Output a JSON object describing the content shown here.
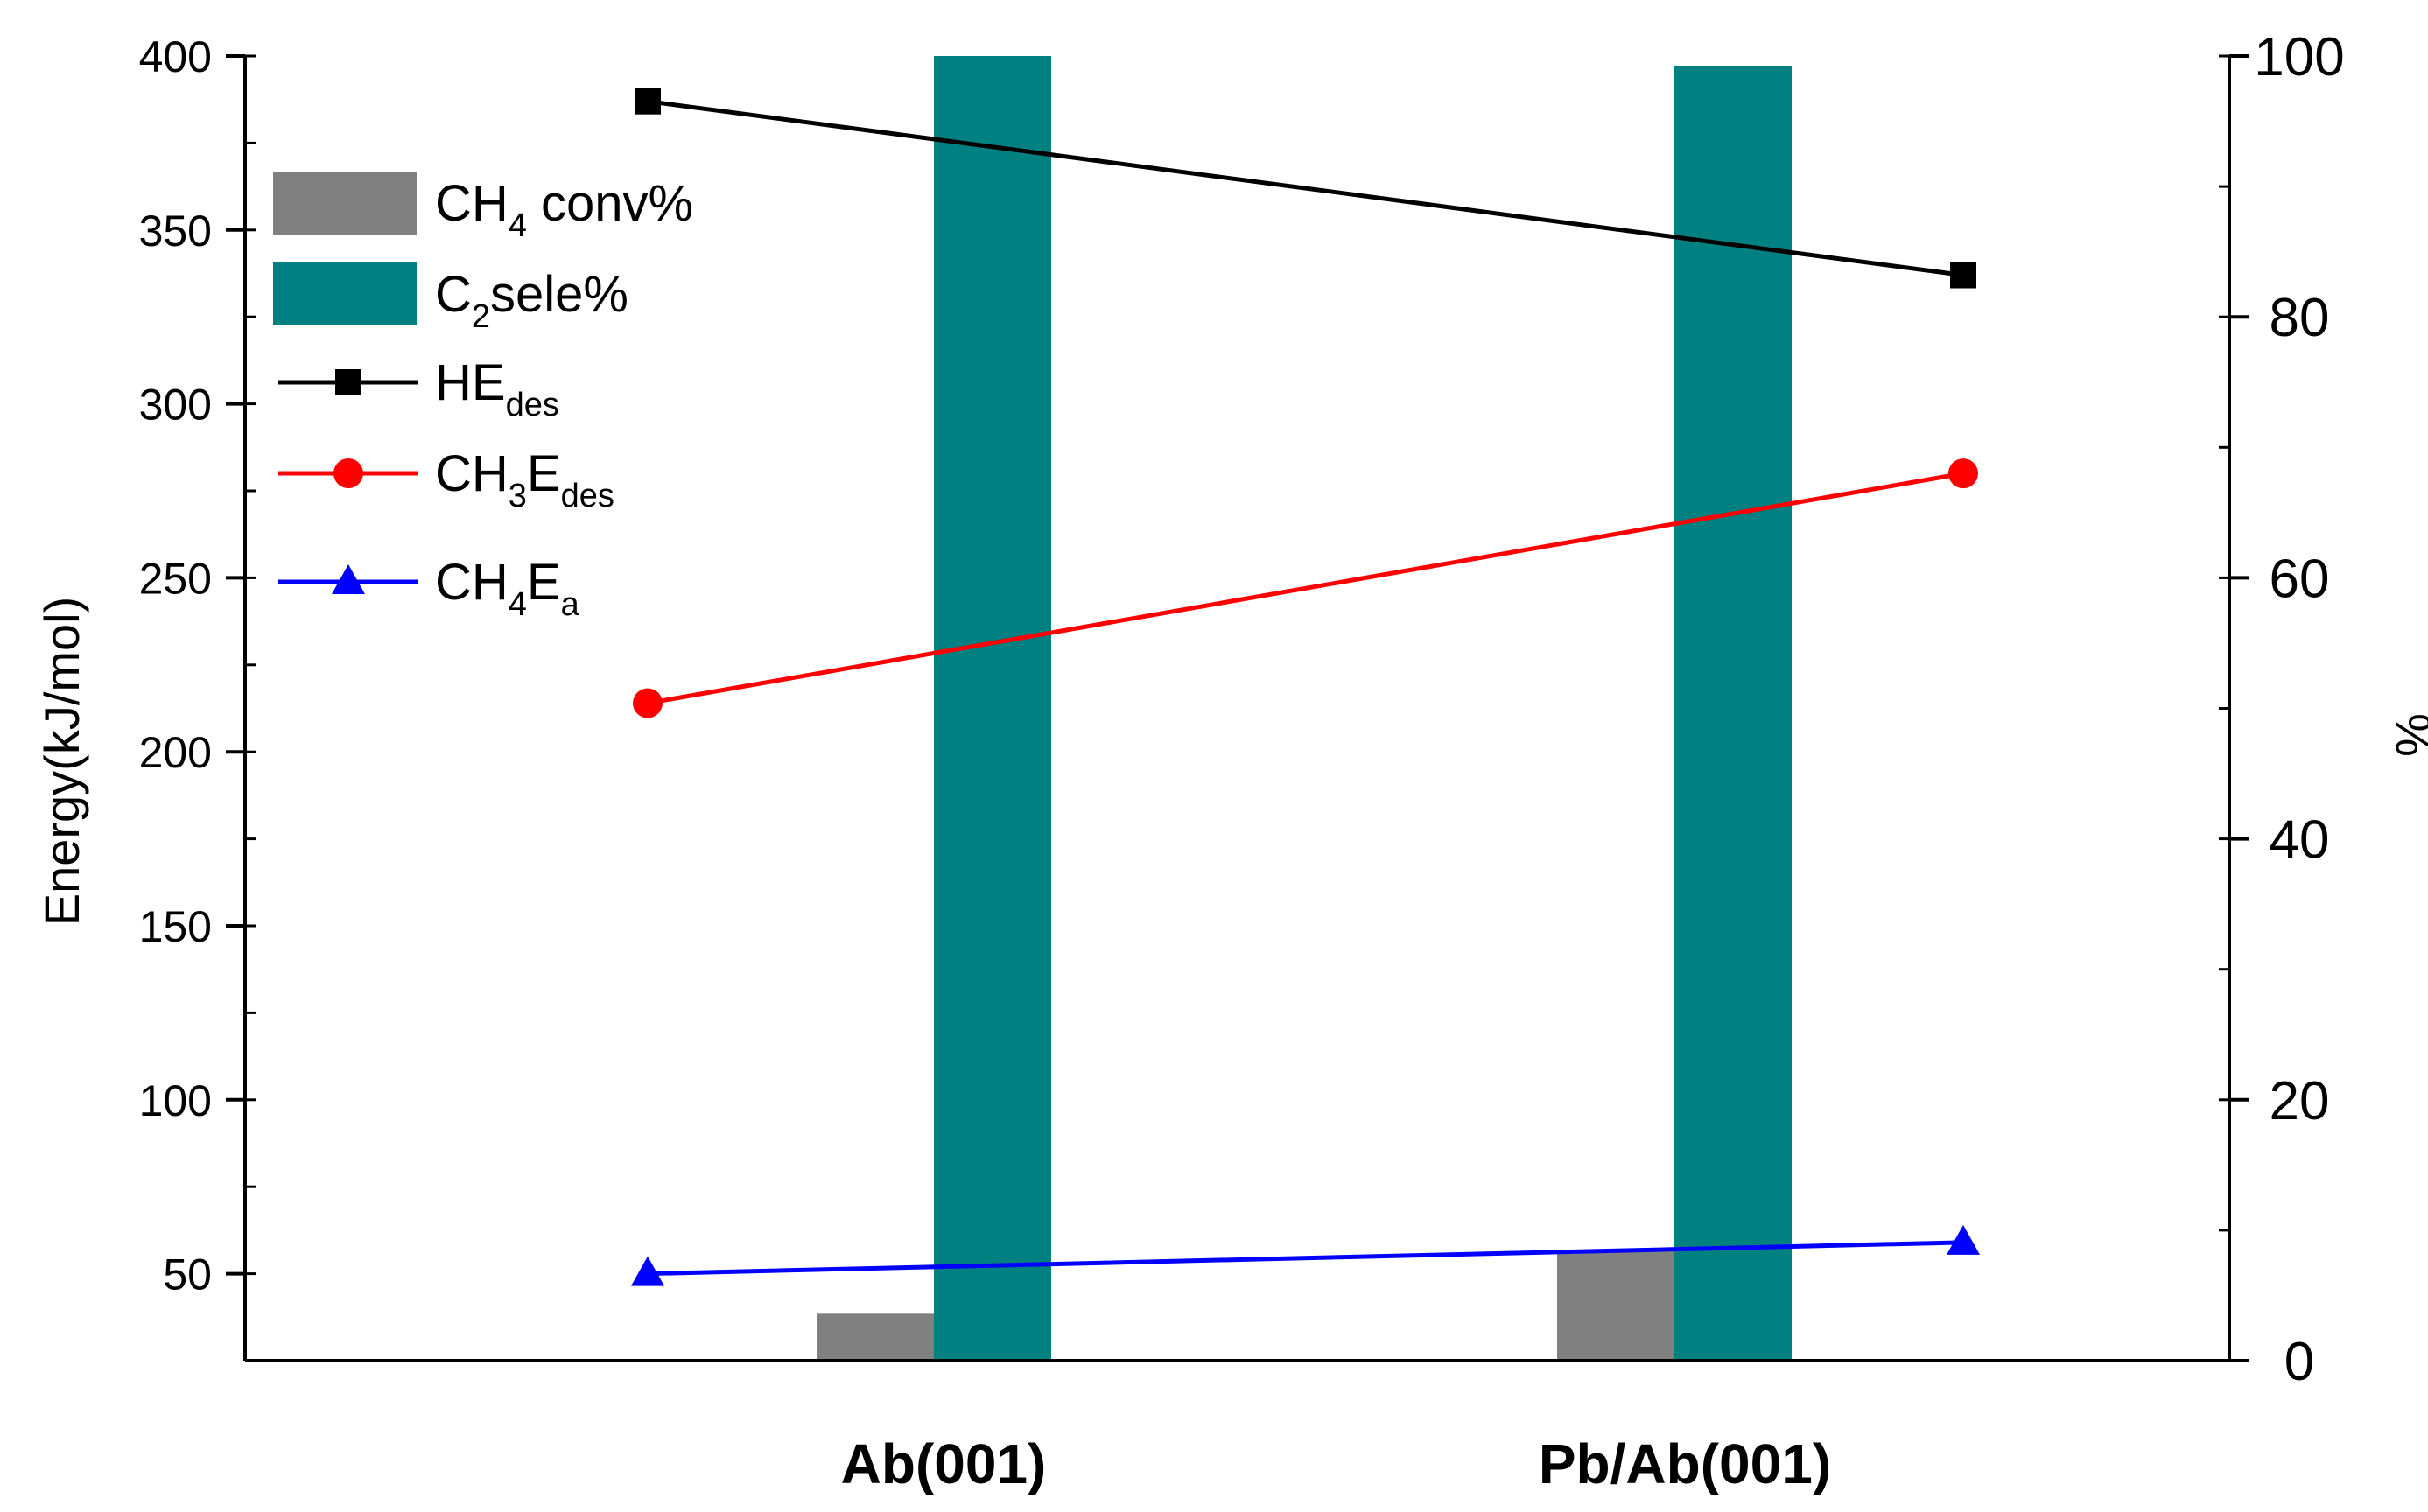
{
  "chart_data": {
    "type": "bar+line",
    "categories": [
      "Ab(001)",
      "Pb/Ab(001)"
    ],
    "left_axis": {
      "label": "Energy(kJ/mol)",
      "range": [
        25,
        400
      ],
      "major_ticks": [
        50,
        100,
        150,
        200,
        250,
        300,
        350,
        400
      ],
      "minor_step": 25
    },
    "right_axis": {
      "label": "%",
      "range": [
        0,
        100
      ],
      "major_ticks": [
        0,
        20,
        40,
        60,
        80,
        100
      ],
      "minor_step": 10
    },
    "bar_series": [
      {
        "key": "ch4conv",
        "name": "CH4 conv%",
        "axis": "right",
        "color": "#808080",
        "values": [
          3.6,
          8.4
        ]
      },
      {
        "key": "c2sele",
        "name": "C2sele%",
        "axis": "right",
        "color": "#008080",
        "values": [
          100,
          99.2
        ]
      }
    ],
    "line_series": [
      {
        "key": "he",
        "name": "HEdes",
        "axis": "left",
        "color": "#000000",
        "marker": "square",
        "values": [
          387,
          337
        ]
      },
      {
        "key": "ch3",
        "name": "CH3Edes",
        "axis": "left",
        "color": "#ff0000",
        "marker": "circle",
        "values": [
          214,
          280
        ]
      },
      {
        "key": "ch4ea",
        "name": "CH4Ea",
        "axis": "left",
        "color": "#0000ff",
        "marker": "triangle",
        "values": [
          50,
          59
        ]
      }
    ],
    "legend": {
      "position": "top-left",
      "entries": [
        {
          "main": "CH",
          "sub": "4",
          "rest": " conv%",
          "sub2": ""
        },
        {
          "main": "C",
          "sub": "2",
          "rest": "sele%",
          "sub2": ""
        },
        {
          "main": "HE",
          "sub": "",
          "rest": "",
          "sub2": "des"
        },
        {
          "main": "CH",
          "sub": "3",
          "rest": "E",
          "sub2": "des"
        },
        {
          "main": "CH",
          "sub": "4",
          "rest": "E",
          "sub2": "a"
        }
      ]
    }
  }
}
